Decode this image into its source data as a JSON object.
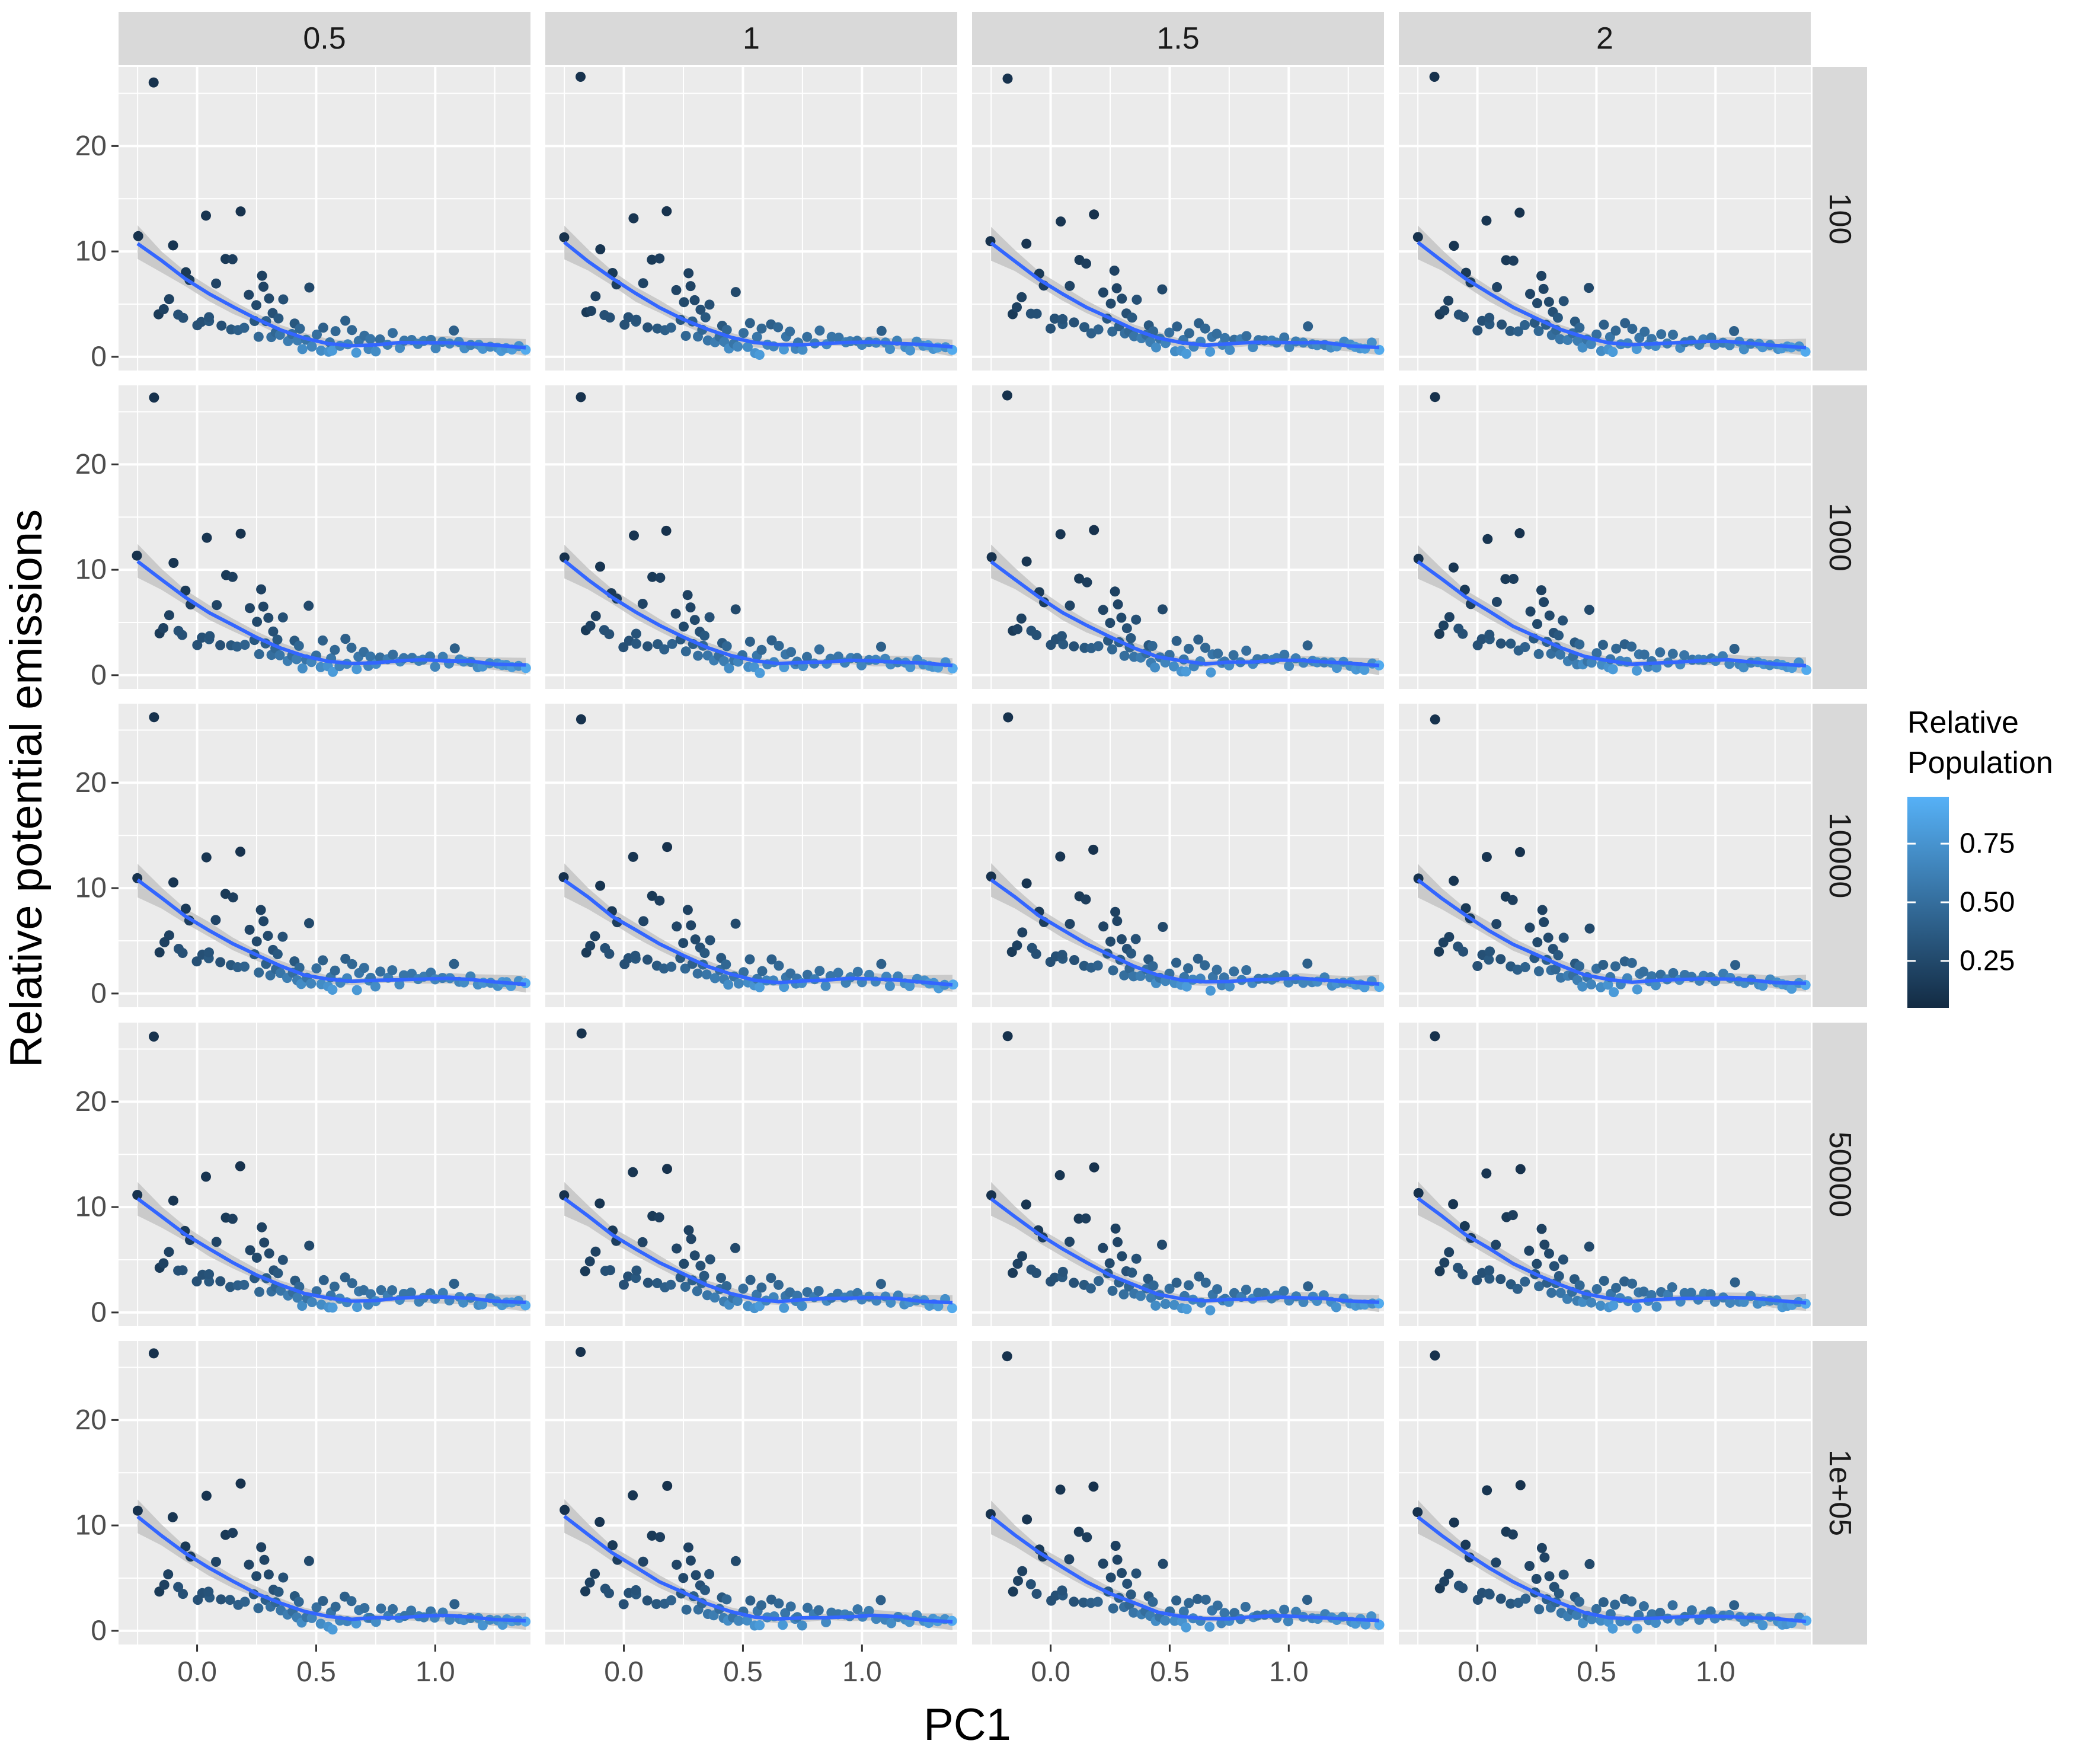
{
  "chart_data": {
    "type": "scatter",
    "title": "",
    "xlabel": "PC1",
    "ylabel": "Relative potential emissions",
    "facet_cols": [
      "0.5",
      "1",
      "1.5",
      "2"
    ],
    "facet_rows": [
      "100",
      "1000",
      "10000",
      "50000",
      "1e+05"
    ],
    "xlim": [
      -0.33,
      1.4
    ],
    "ylim": [
      -1.3,
      27.5
    ],
    "x_ticks": [
      0.0,
      0.5,
      1.0
    ],
    "x_tick_labels": [
      "0.0",
      "0.5",
      "1.0"
    ],
    "y_ticks": [
      0,
      10,
      20
    ],
    "y_tick_labels": [
      "0",
      "10",
      "20"
    ],
    "grid": true,
    "legend": {
      "title": "Relative Population",
      "position": "right",
      "ticks": [
        0.25,
        0.5,
        0.75
      ],
      "tick_labels": [
        "0.25",
        "0.50",
        "0.75"
      ],
      "range": [
        0.05,
        0.95
      ],
      "colors": {
        "low": "#132B43",
        "high": "#56B1F7"
      }
    },
    "colors": {
      "panel_bg": "#EBEBEB",
      "strip_bg": "#D9D9D9",
      "grid": "#FFFFFF",
      "smooth_line": "#3366FF",
      "ribbon": "#BFBFBF"
    },
    "series": [
      {
        "type": "scatter",
        "x": [
          -0.25,
          -0.18,
          -0.16,
          -0.14,
          -0.12,
          -0.1,
          -0.08,
          -0.06,
          -0.05,
          -0.03,
          0.0,
          0.02,
          0.04,
          0.05,
          0.05,
          0.08,
          0.1,
          0.12,
          0.14,
          0.15,
          0.17,
          0.18,
          0.2,
          0.22,
          0.24,
          0.25,
          0.26,
          0.27,
          0.28,
          0.29,
          0.3,
          0.31,
          0.32,
          0.33,
          0.34,
          0.35,
          0.36,
          0.38,
          0.4,
          0.41,
          0.42,
          0.43,
          0.44,
          0.46,
          0.47,
          0.48,
          0.5,
          0.52,
          0.53,
          0.55,
          0.56,
          0.57,
          0.58,
          0.6,
          0.62,
          0.63,
          0.65,
          0.67,
          0.68,
          0.7,
          0.72,
          0.73,
          0.75,
          0.77,
          0.8,
          0.82,
          0.85,
          0.87,
          0.9,
          0.93,
          0.95,
          0.98,
          1.0,
          1.03,
          1.06,
          1.08,
          1.1,
          1.12,
          1.15,
          1.18,
          1.2,
          1.23,
          1.26,
          1.28,
          1.3,
          1.32,
          1.35,
          1.38
        ],
        "y": [
          11.2,
          26.3,
          4.0,
          4.6,
          5.5,
          10.5,
          4.2,
          3.8,
          8.0,
          7.0,
          2.8,
          3.5,
          13.1,
          3.2,
          3.8,
          6.7,
          3.0,
          9.2,
          2.7,
          9.1,
          2.5,
          13.7,
          2.8,
          6.1,
          3.5,
          4.9,
          2.2,
          7.9,
          6.7,
          3.1,
          5.4,
          2.0,
          4.2,
          2.5,
          3.6,
          1.8,
          5.2,
          1.5,
          2.0,
          3.1,
          1.3,
          2.7,
          0.9,
          1.5,
          6.4,
          1.1,
          2.1,
          0.8,
          3.0,
          0.6,
          1.6,
          0.4,
          2.4,
          1.1,
          3.2,
          1.2,
          2.7,
          0.5,
          1.7,
          2.2,
          1.0,
          1.5,
          0.8,
          1.9,
          1.4,
          2.2,
          1.0,
          1.6,
          1.7,
          1.3,
          1.5,
          1.8,
          1.1,
          1.6,
          1.2,
          2.7,
          1.3,
          1.0,
          1.4,
          1.0,
          0.8,
          1.2,
          1.0,
          0.8,
          0.9,
          0.7,
          1.1,
          0.7
        ],
        "color_values": [
          0.1,
          0.1,
          0.15,
          0.2,
          0.2,
          0.12,
          0.3,
          0.3,
          0.15,
          0.18,
          0.3,
          0.3,
          0.12,
          0.35,
          0.32,
          0.22,
          0.3,
          0.15,
          0.35,
          0.18,
          0.4,
          0.1,
          0.42,
          0.22,
          0.35,
          0.25,
          0.45,
          0.2,
          0.22,
          0.4,
          0.25,
          0.5,
          0.3,
          0.45,
          0.35,
          0.55,
          0.3,
          0.6,
          0.5,
          0.35,
          0.6,
          0.45,
          0.7,
          0.55,
          0.25,
          0.65,
          0.5,
          0.7,
          0.4,
          0.75,
          0.55,
          0.8,
          0.45,
          0.65,
          0.4,
          0.65,
          0.45,
          0.78,
          0.55,
          0.5,
          0.65,
          0.55,
          0.7,
          0.5,
          0.6,
          0.5,
          0.68,
          0.55,
          0.55,
          0.62,
          0.6,
          0.55,
          0.65,
          0.6,
          0.65,
          0.4,
          0.65,
          0.7,
          0.62,
          0.7,
          0.75,
          0.68,
          0.72,
          0.78,
          0.75,
          0.8,
          0.72,
          0.9
        ]
      },
      {
        "type": "smooth",
        "x": [
          -0.25,
          -0.15,
          -0.05,
          0.05,
          0.15,
          0.25,
          0.35,
          0.45,
          0.55,
          0.65,
          0.75,
          0.85,
          0.95,
          1.05,
          1.15,
          1.25,
          1.38
        ],
        "y": [
          10.8,
          9.1,
          7.4,
          6.0,
          4.7,
          3.6,
          2.6,
          1.8,
          1.3,
          1.1,
          1.2,
          1.3,
          1.4,
          1.4,
          1.3,
          1.1,
          0.9
        ],
        "lower": [
          9.2,
          8.1,
          6.7,
          5.3,
          4.1,
          3.1,
          2.1,
          1.3,
          0.9,
          0.8,
          0.9,
          1.0,
          1.0,
          0.9,
          0.8,
          0.5,
          0.1
        ],
        "upper": [
          12.4,
          10.1,
          8.1,
          6.7,
          5.3,
          4.1,
          3.1,
          2.3,
          1.7,
          1.4,
          1.5,
          1.6,
          1.8,
          1.9,
          1.8,
          1.7,
          1.7
        ]
      }
    ]
  }
}
